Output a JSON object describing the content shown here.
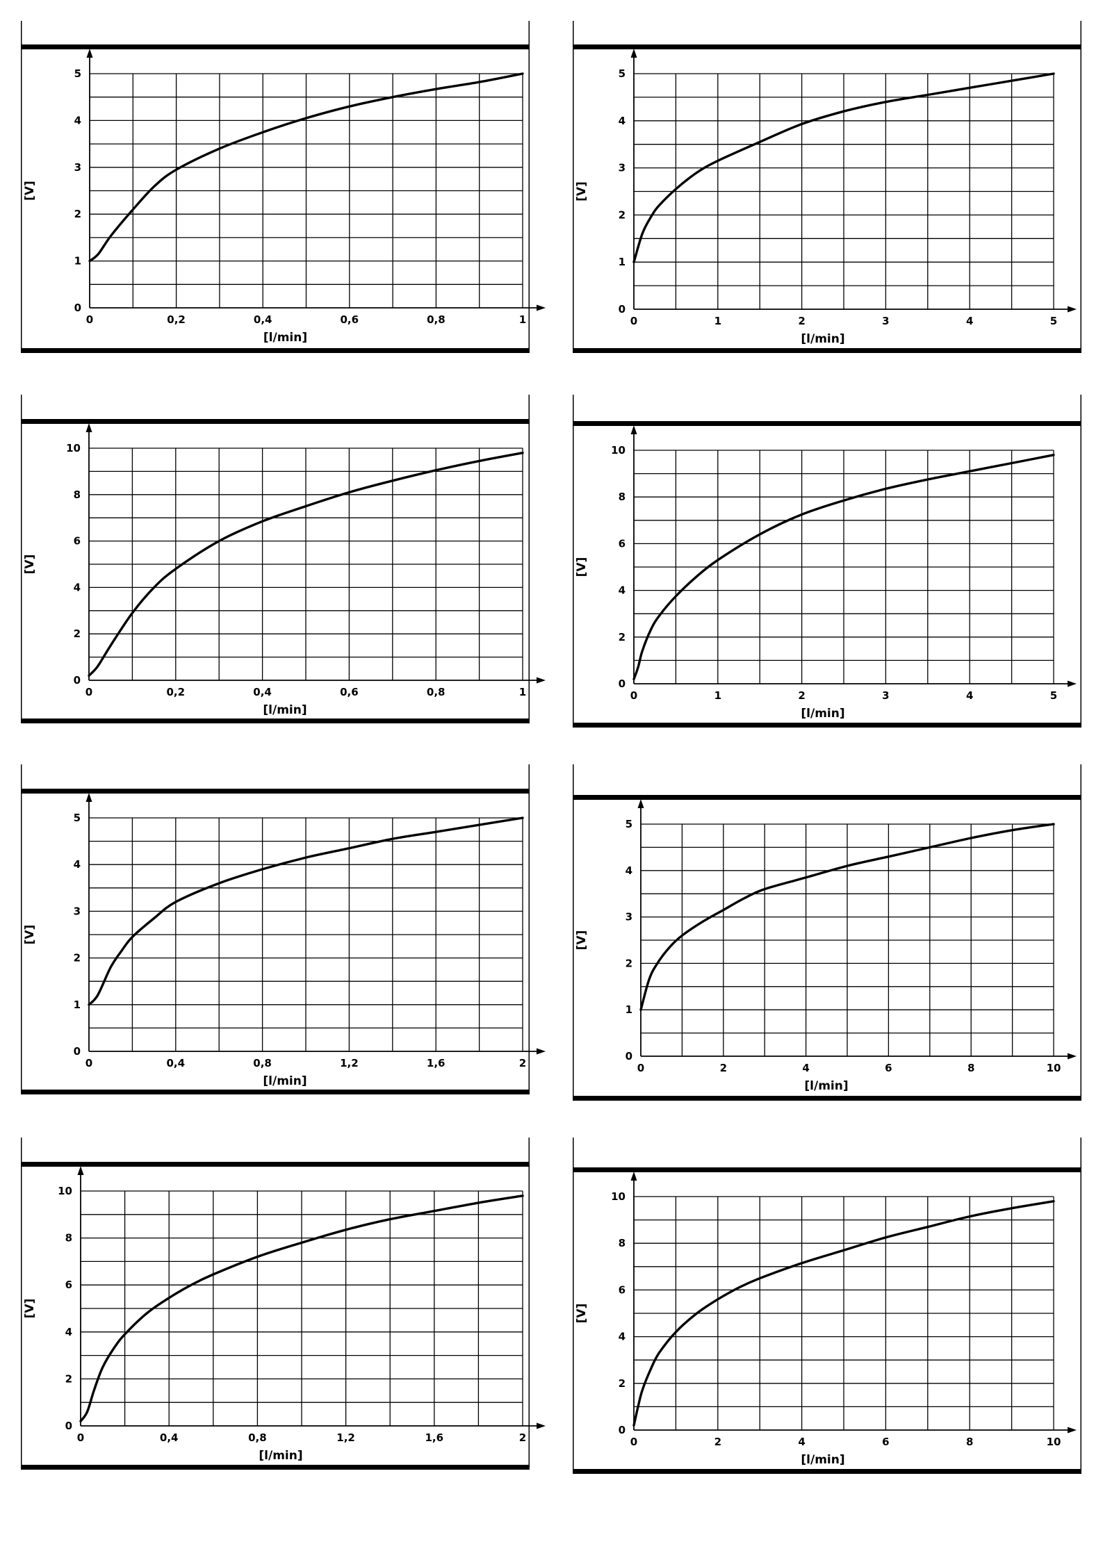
{
  "chart_data": [
    {
      "type": "line",
      "xlabel": "[l/min]",
      "ylabel": "[V]",
      "xlim": [
        0,
        1
      ],
      "ylim": [
        0,
        5
      ],
      "x_ticks": [
        0,
        0.2,
        0.4,
        0.6,
        0.8,
        1
      ],
      "x_tick_labels": [
        "0",
        "0,2",
        "0,4",
        "0,6",
        "0,8",
        "1"
      ],
      "y_ticks": [
        0,
        1,
        2,
        3,
        4,
        5
      ],
      "y_tick_labels": [
        "0",
        "1",
        "2",
        "3",
        "4",
        "5"
      ],
      "grid": true,
      "series": [
        {
          "x": [
            0,
            0.02,
            0.05,
            0.1,
            0.15,
            0.2,
            0.3,
            0.4,
            0.5,
            0.6,
            0.7,
            0.8,
            0.9,
            1.0
          ],
          "values": [
            1.0,
            1.15,
            1.55,
            2.1,
            2.6,
            2.95,
            3.4,
            3.75,
            4.05,
            4.3,
            4.5,
            4.67,
            4.82,
            5.0
          ]
        }
      ]
    },
    {
      "type": "line",
      "xlabel": "[l/min]",
      "ylabel": "[V]",
      "xlim": [
        0,
        5
      ],
      "ylim": [
        0,
        5
      ],
      "x_ticks": [
        0,
        1,
        2,
        3,
        4,
        5
      ],
      "x_tick_labels": [
        "0",
        "1",
        "2",
        "3",
        "4",
        "5"
      ],
      "y_ticks": [
        0,
        1,
        2,
        3,
        4,
        5
      ],
      "y_tick_labels": [
        "0",
        "1",
        "2",
        "3",
        "4",
        "5"
      ],
      "grid": true,
      "series": [
        {
          "x": [
            0,
            0.1,
            0.2,
            0.3,
            0.5,
            0.75,
            1.0,
            1.5,
            2.0,
            2.5,
            3.0,
            3.5,
            4.0,
            4.5,
            5.0
          ],
          "values": [
            1.0,
            1.6,
            1.95,
            2.2,
            2.55,
            2.9,
            3.15,
            3.55,
            3.93,
            4.2,
            4.4,
            4.55,
            4.7,
            4.85,
            5.0
          ]
        }
      ]
    },
    {
      "type": "line",
      "xlabel": "[l/min]",
      "ylabel": "[V]",
      "xlim": [
        0,
        1
      ],
      "ylim": [
        0,
        10
      ],
      "x_ticks": [
        0,
        0.2,
        0.4,
        0.6,
        0.8,
        1
      ],
      "x_tick_labels": [
        "0",
        "0,2",
        "0,4",
        "0,6",
        "0,8",
        "1"
      ],
      "y_ticks": [
        0,
        2,
        4,
        6,
        8,
        10
      ],
      "y_tick_labels": [
        "0",
        "2",
        "4",
        "6",
        "8",
        "10"
      ],
      "grid": true,
      "series": [
        {
          "x": [
            0,
            0.02,
            0.05,
            0.1,
            0.15,
            0.2,
            0.3,
            0.4,
            0.5,
            0.6,
            0.7,
            0.8,
            0.9,
            1.0
          ],
          "values": [
            0.2,
            0.6,
            1.5,
            2.9,
            4.0,
            4.8,
            6.0,
            6.85,
            7.5,
            8.1,
            8.6,
            9.05,
            9.45,
            9.8
          ]
        }
      ]
    },
    {
      "type": "line",
      "xlabel": "[l/min]",
      "ylabel": "[V]",
      "xlim": [
        0,
        5
      ],
      "ylim": [
        0,
        10
      ],
      "x_ticks": [
        0,
        1,
        2,
        3,
        4,
        5
      ],
      "x_tick_labels": [
        "0",
        "1",
        "2",
        "3",
        "4",
        "5"
      ],
      "y_ticks": [
        0,
        2,
        4,
        6,
        8,
        10
      ],
      "y_tick_labels": [
        "0",
        "2",
        "4",
        "6",
        "8",
        "10"
      ],
      "grid": true,
      "series": [
        {
          "x": [
            0,
            0.05,
            0.1,
            0.2,
            0.3,
            0.5,
            0.75,
            1.0,
            1.5,
            2.0,
            2.5,
            3.0,
            3.5,
            4.0,
            4.5,
            5.0
          ],
          "values": [
            0.2,
            0.7,
            1.4,
            2.3,
            2.9,
            3.75,
            4.6,
            5.3,
            6.4,
            7.25,
            7.85,
            8.35,
            8.75,
            9.1,
            9.45,
            9.8
          ]
        }
      ]
    },
    {
      "type": "line",
      "xlabel": "[l/min]",
      "ylabel": "[V]",
      "xlim": [
        0,
        2
      ],
      "ylim": [
        0,
        5
      ],
      "x_ticks": [
        0,
        0.4,
        0.8,
        1.2,
        1.6,
        2
      ],
      "x_tick_labels": [
        "0",
        "0,4",
        "0,8",
        "1,2",
        "1,6",
        "2"
      ],
      "y_ticks": [
        0,
        1,
        2,
        3,
        4,
        5
      ],
      "y_tick_labels": [
        "0",
        "1",
        "2",
        "3",
        "4",
        "5"
      ],
      "grid": true,
      "series": [
        {
          "x": [
            0,
            0.04,
            0.1,
            0.15,
            0.2,
            0.3,
            0.4,
            0.6,
            0.8,
            1.0,
            1.2,
            1.4,
            1.6,
            1.8,
            2.0
          ],
          "values": [
            1.0,
            1.2,
            1.8,
            2.15,
            2.45,
            2.85,
            3.2,
            3.6,
            3.9,
            4.15,
            4.35,
            4.55,
            4.7,
            4.85,
            5.0
          ]
        }
      ]
    },
    {
      "type": "line",
      "xlabel": "[l/min]",
      "ylabel": "[V]",
      "xlim": [
        0,
        10
      ],
      "ylim": [
        0,
        5
      ],
      "x_ticks": [
        0,
        2,
        4,
        6,
        8,
        10
      ],
      "x_tick_labels": [
        "0",
        "2",
        "4",
        "6",
        "8",
        "10"
      ],
      "y_ticks": [
        0,
        1,
        2,
        3,
        4,
        5
      ],
      "y_tick_labels": [
        "0",
        "1",
        "2",
        "3",
        "4",
        "5"
      ],
      "grid": true,
      "series": [
        {
          "x": [
            0,
            0.2,
            0.4,
            0.7,
            1.0,
            1.5,
            2.0,
            2.5,
            3.0,
            4.0,
            5.0,
            6.0,
            7.0,
            8.0,
            9.0,
            10.0
          ],
          "values": [
            1.0,
            1.65,
            2.0,
            2.35,
            2.6,
            2.9,
            3.15,
            3.4,
            3.6,
            3.85,
            4.1,
            4.3,
            4.5,
            4.7,
            4.87,
            5.0
          ]
        }
      ]
    },
    {
      "type": "line",
      "xlabel": "[l/min]",
      "ylabel": "[V]",
      "xlim": [
        0,
        2
      ],
      "ylim": [
        0,
        10
      ],
      "x_ticks": [
        0,
        0.4,
        0.8,
        1.2,
        1.6,
        2
      ],
      "x_tick_labels": [
        "0",
        "0,4",
        "0,8",
        "1,2",
        "1,6",
        "2"
      ],
      "y_ticks": [
        0,
        2,
        4,
        6,
        8,
        10
      ],
      "y_tick_labels": [
        "0",
        "2",
        "4",
        "6",
        "8",
        "10"
      ],
      "grid": true,
      "series": [
        {
          "x": [
            0,
            0.03,
            0.06,
            0.1,
            0.15,
            0.2,
            0.3,
            0.4,
            0.5,
            0.6,
            0.8,
            1.0,
            1.2,
            1.4,
            1.6,
            1.8,
            2.0
          ],
          "values": [
            0.2,
            0.6,
            1.5,
            2.5,
            3.3,
            3.9,
            4.8,
            5.45,
            6.0,
            6.45,
            7.2,
            7.8,
            8.35,
            8.8,
            9.15,
            9.5,
            9.8
          ]
        }
      ]
    },
    {
      "type": "line",
      "xlabel": "[l/min]",
      "ylabel": "[V]",
      "xlim": [
        0,
        10
      ],
      "ylim": [
        0,
        10
      ],
      "x_ticks": [
        0,
        2,
        4,
        6,
        8,
        10
      ],
      "x_tick_labels": [
        "0",
        "2",
        "4",
        "6",
        "8",
        "10"
      ],
      "y_ticks": [
        0,
        2,
        4,
        6,
        8,
        10
      ],
      "y_tick_labels": [
        "0",
        "2",
        "4",
        "6",
        "8",
        "10"
      ],
      "grid": true,
      "series": [
        {
          "x": [
            0,
            0.1,
            0.2,
            0.4,
            0.6,
            1.0,
            1.5,
            2.0,
            2.5,
            3.0,
            4.0,
            5.0,
            6.0,
            7.0,
            8.0,
            9.0,
            10.0
          ],
          "values": [
            0.2,
            1.0,
            1.7,
            2.6,
            3.3,
            4.2,
            5.0,
            5.6,
            6.1,
            6.5,
            7.15,
            7.7,
            8.25,
            8.7,
            9.15,
            9.5,
            9.8
          ]
        }
      ]
    }
  ]
}
